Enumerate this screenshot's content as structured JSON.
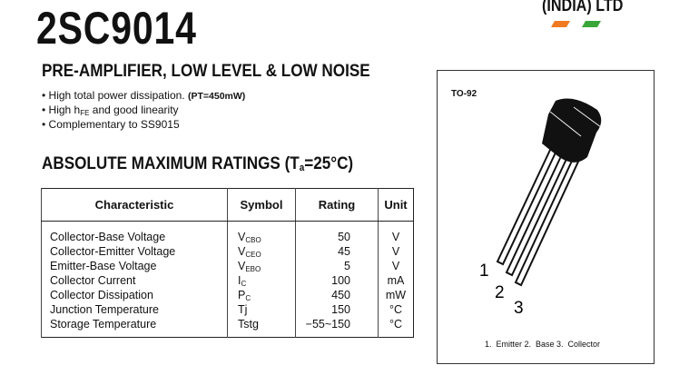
{
  "part_number": "2SC9014",
  "logo": {
    "text": "(INDIA) LTD",
    "colors": [
      "#f07a20",
      "#3aa63a"
    ]
  },
  "subtitle": "PRE-AMPLIFIER, LOW LEVEL & LOW NOISE",
  "features": [
    {
      "text": "High total power dissipation.",
      "bold": "(PT=450mW)"
    },
    {
      "pre": "High h",
      "sub": "FE",
      "post": " and good linearity"
    },
    {
      "text": "Complementary to SS9015"
    }
  ],
  "ratings_heading": {
    "pre": "ABSOLUTE MAXIMUM RATINGS (T",
    "sub": "a",
    "post": "=25°C)"
  },
  "table": {
    "headers": [
      "Characteristic",
      "Symbol",
      "Rating",
      "Unit"
    ],
    "rows": [
      {
        "characteristic": "Collector-Base Voltage",
        "symbol": "V",
        "symbol_sub": "CBO",
        "rating": "50",
        "unit": "V"
      },
      {
        "characteristic": "Collector-Emitter Voltage",
        "symbol": "V",
        "symbol_sub": "CEO",
        "rating": "45",
        "unit": "V"
      },
      {
        "characteristic": "Emitter-Base Voltage",
        "symbol": "V",
        "symbol_sub": "EBO",
        "rating": "5",
        "unit": "V"
      },
      {
        "characteristic": "Collector Current",
        "symbol": "I",
        "symbol_sub": "C",
        "rating": "100",
        "unit": "mA"
      },
      {
        "characteristic": "Collector Dissipation",
        "symbol": "P",
        "symbol_sub": "C",
        "rating": "450",
        "unit": "mW"
      },
      {
        "characteristic": "Junction Temperature",
        "symbol": "Tj",
        "symbol_sub": "",
        "rating": "150",
        "unit": "°C"
      },
      {
        "characteristic": "Storage Temperature",
        "symbol": "Tstg",
        "symbol_sub": "",
        "rating": "−55~150",
        "unit": "°C"
      }
    ]
  },
  "package": {
    "name": "TO-92",
    "pins": [
      "1",
      "2",
      "3"
    ],
    "caption": "1.  Emitter 2.  Base 3.  Collector"
  }
}
